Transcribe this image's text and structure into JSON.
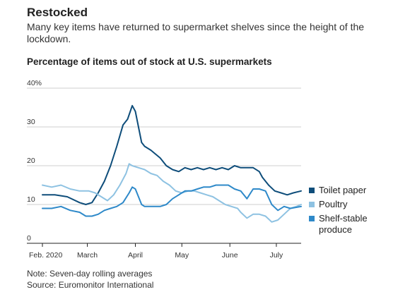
{
  "header": {
    "title": "Restocked",
    "subtitle": "Many key items have returned to supermarket shelves since the height of the lockdown."
  },
  "notes": {
    "note": "Note: Seven-day rolling averages",
    "source": "Source: Euromonitor International"
  },
  "chart_data": {
    "type": "line",
    "title": "Percentage of items out of stock at U.S. supermarkets",
    "xlabel": "",
    "ylabel": "",
    "ylim": [
      0,
      40
    ],
    "yticks": [
      {
        "value": 0,
        "label": "0"
      },
      {
        "value": 10,
        "label": "10"
      },
      {
        "value": 20,
        "label": "20"
      },
      {
        "value": 30,
        "label": "30"
      },
      {
        "value": 40,
        "label": "40%"
      }
    ],
    "xlim": [
      0,
      167
    ],
    "xticks": [
      {
        "value": 0,
        "label": "Feb. 2020"
      },
      {
        "value": 29,
        "label": "March"
      },
      {
        "value": 60,
        "label": "April"
      },
      {
        "value": 90,
        "label": "May"
      },
      {
        "value": 121,
        "label": "June"
      },
      {
        "value": 151,
        "label": "July"
      }
    ],
    "grid": true,
    "legend_position": "right",
    "series": [
      {
        "name": "Toilet paper",
        "color": "#0e4d7a",
        "x": [
          0,
          8,
          16,
          24,
          28,
          32,
          36,
          40,
          44,
          48,
          52,
          55,
          58,
          60,
          62,
          64,
          66,
          70,
          76,
          80,
          84,
          88,
          92,
          96,
          100,
          104,
          108,
          112,
          116,
          120,
          124,
          128,
          132,
          136,
          140,
          142,
          146,
          150,
          154,
          158,
          162,
          167
        ],
        "values": [
          12.5,
          12.5,
          12,
          10.5,
          10,
          10.5,
          13,
          16,
          20,
          25,
          30.5,
          32,
          35.5,
          34,
          30,
          26,
          25,
          24,
          22,
          20,
          19,
          18.5,
          19.5,
          19,
          19.5,
          19,
          19.5,
          19,
          19.5,
          19,
          20,
          19.5,
          19.5,
          19.5,
          18.5,
          17,
          15,
          13.5,
          13,
          12.5,
          13,
          13.5
        ]
      },
      {
        "name": "Poultry",
        "color": "#8ec2e2",
        "x": [
          0,
          6,
          12,
          18,
          24,
          30,
          34,
          38,
          42,
          46,
          50,
          54,
          56,
          58,
          62,
          66,
          70,
          74,
          78,
          82,
          86,
          90,
          94,
          98,
          102,
          106,
          110,
          114,
          118,
          122,
          126,
          128,
          132,
          136,
          140,
          144,
          148,
          152,
          156,
          160,
          164,
          167
        ],
        "values": [
          15,
          14.5,
          15,
          14,
          13.5,
          13.5,
          13,
          12,
          11,
          12.5,
          15,
          18,
          20.5,
          20,
          19.5,
          19,
          18,
          17.5,
          16,
          15,
          13.5,
          13,
          13.5,
          13.5,
          13,
          12.5,
          12,
          11,
          10,
          9.5,
          9,
          8,
          6.5,
          7.5,
          7.5,
          7,
          5.5,
          6,
          7.5,
          9,
          9.5,
          10
        ]
      },
      {
        "name": "Shelf-stable produce",
        "color": "#2e89c9",
        "x": [
          0,
          6,
          12,
          18,
          24,
          28,
          32,
          36,
          40,
          44,
          48,
          52,
          56,
          58,
          60,
          62,
          64,
          66,
          70,
          76,
          80,
          84,
          88,
          92,
          96,
          100,
          104,
          108,
          112,
          116,
          120,
          124,
          128,
          132,
          136,
          140,
          144,
          148,
          152,
          156,
          160,
          167
        ],
        "values": [
          9,
          9,
          9.5,
          8.5,
          8,
          7,
          7,
          7.5,
          8.5,
          9,
          9.5,
          10.5,
          13,
          14.5,
          14,
          12,
          10,
          9.5,
          9.5,
          9.5,
          10,
          11.5,
          12.5,
          13.5,
          13.5,
          14,
          14.5,
          14.5,
          15,
          15,
          15,
          14,
          13.5,
          11.5,
          14,
          14,
          13.5,
          10,
          8.5,
          9.5,
          9,
          9.5
        ]
      }
    ]
  }
}
